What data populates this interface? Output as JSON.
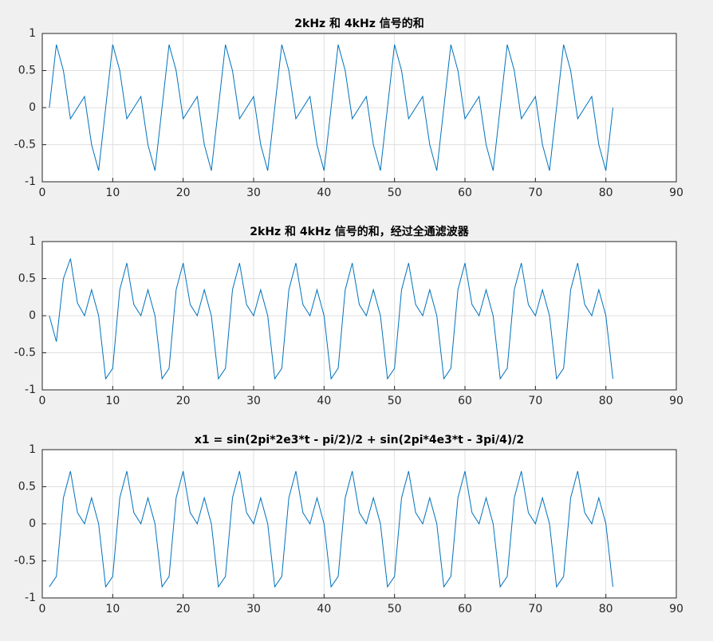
{
  "chart_data": [
    {
      "type": "line",
      "title": "2kHz 和 4kHz 信号的和",
      "color": "#0072bd",
      "grid": true,
      "xlim": [
        0,
        90
      ],
      "xticks": [
        0,
        10,
        20,
        30,
        40,
        50,
        60,
        70,
        80,
        90
      ],
      "ylim": [
        -1,
        1
      ],
      "yticks": [
        -1,
        -0.5,
        0,
        0.5,
        1
      ],
      "x": [
        1,
        2,
        3,
        4,
        5,
        6,
        7,
        8,
        9,
        10,
        11,
        12,
        13,
        14,
        15,
        16,
        17,
        18,
        19,
        20,
        21,
        22,
        23,
        24,
        25,
        26,
        27,
        28,
        29,
        30,
        31,
        32,
        33,
        34,
        35,
        36,
        37,
        38,
        39,
        40,
        41,
        42,
        43,
        44,
        45,
        46,
        47,
        48,
        49,
        50,
        51,
        52,
        53,
        54,
        55,
        56,
        57,
        58,
        59,
        60,
        61,
        62,
        63,
        64,
        65,
        66,
        67,
        68,
        69,
        70,
        71,
        72,
        73,
        74,
        75,
        76,
        77,
        78,
        79,
        80,
        81
      ],
      "values": [
        0,
        0.85,
        0.5,
        -0.15,
        0,
        0.15,
        -0.5,
        -0.85,
        0,
        0.85,
        0.5,
        -0.15,
        0,
        0.15,
        -0.5,
        -0.85,
        0,
        0.85,
        0.5,
        -0.15,
        0,
        0.15,
        -0.5,
        -0.85,
        0,
        0.85,
        0.5,
        -0.15,
        0,
        0.15,
        -0.5,
        -0.85,
        0,
        0.85,
        0.5,
        -0.15,
        0,
        0.15,
        -0.5,
        -0.85,
        0,
        0.85,
        0.5,
        -0.15,
        0,
        0.15,
        -0.5,
        -0.85,
        0,
        0.85,
        0.5,
        -0.15,
        0,
        0.15,
        -0.5,
        -0.85,
        0,
        0.85,
        0.5,
        -0.15,
        0,
        0.15,
        -0.5,
        -0.85,
        0,
        0.85,
        0.5,
        -0.15,
        0,
        0.15,
        -0.5,
        -0.85,
        0,
        0.85,
        0.5,
        -0.15,
        0,
        0.15,
        -0.5,
        -0.85,
        0
      ]
    },
    {
      "type": "line",
      "title": "2kHz 和 4kHz 信号的和，经过全通滤波器",
      "color": "#0072bd",
      "grid": true,
      "xlim": [
        0,
        90
      ],
      "xticks": [
        0,
        10,
        20,
        30,
        40,
        50,
        60,
        70,
        80,
        90
      ],
      "ylim": [
        -1,
        1
      ],
      "yticks": [
        -1,
        -0.5,
        0,
        0.5,
        1
      ],
      "x": [
        1,
        2,
        3,
        4,
        5,
        6,
        7,
        8,
        9,
        10,
        11,
        12,
        13,
        14,
        15,
        16,
        17,
        18,
        19,
        20,
        21,
        22,
        23,
        24,
        25,
        26,
        27,
        28,
        29,
        30,
        31,
        32,
        33,
        34,
        35,
        36,
        37,
        38,
        39,
        40,
        41,
        42,
        43,
        44,
        45,
        46,
        47,
        48,
        49,
        50,
        51,
        52,
        53,
        54,
        55,
        56,
        57,
        58,
        59,
        60,
        61,
        62,
        63,
        64,
        65,
        66,
        67,
        68,
        69,
        70,
        71,
        72,
        73,
        74,
        75,
        76,
        77,
        78,
        79,
        80,
        81
      ],
      "values": [
        0,
        -0.35,
        0.5,
        0.77,
        0.17,
        0,
        0.35,
        0,
        -0.85,
        -0.71,
        0.35,
        0.71,
        0.15,
        0,
        0.35,
        0,
        -0.85,
        -0.71,
        0.35,
        0.71,
        0.15,
        0,
        0.35,
        0,
        -0.85,
        -0.71,
        0.35,
        0.71,
        0.15,
        0,
        0.35,
        0,
        -0.85,
        -0.71,
        0.35,
        0.71,
        0.15,
        0,
        0.35,
        0,
        -0.85,
        -0.71,
        0.35,
        0.71,
        0.15,
        0,
        0.35,
        0,
        -0.85,
        -0.71,
        0.35,
        0.71,
        0.15,
        0,
        0.35,
        0,
        -0.85,
        -0.71,
        0.35,
        0.71,
        0.15,
        0,
        0.35,
        0,
        -0.85,
        -0.71,
        0.35,
        0.71,
        0.15,
        0,
        0.35,
        0,
        -0.85,
        -0.71,
        0.35,
        0.71,
        0.15,
        0,
        0.35,
        0,
        -0.85
      ]
    },
    {
      "type": "line",
      "title": "x1 = sin(2pi*2e3*t - pi/2)/2 + sin(2pi*4e3*t - 3pi/4)/2",
      "color": "#0072bd",
      "grid": true,
      "xlim": [
        0,
        90
      ],
      "xticks": [
        0,
        10,
        20,
        30,
        40,
        50,
        60,
        70,
        80,
        90
      ],
      "ylim": [
        -1,
        1
      ],
      "yticks": [
        -1,
        -0.5,
        0,
        0.5,
        1
      ],
      "x": [
        1,
        2,
        3,
        4,
        5,
        6,
        7,
        8,
        9,
        10,
        11,
        12,
        13,
        14,
        15,
        16,
        17,
        18,
        19,
        20,
        21,
        22,
        23,
        24,
        25,
        26,
        27,
        28,
        29,
        30,
        31,
        32,
        33,
        34,
        35,
        36,
        37,
        38,
        39,
        40,
        41,
        42,
        43,
        44,
        45,
        46,
        47,
        48,
        49,
        50,
        51,
        52,
        53,
        54,
        55,
        56,
        57,
        58,
        59,
        60,
        61,
        62,
        63,
        64,
        65,
        66,
        67,
        68,
        69,
        70,
        71,
        72,
        73,
        74,
        75,
        76,
        77,
        78,
        79,
        80,
        81
      ],
      "values": [
        -0.85,
        -0.71,
        0.35,
        0.71,
        0.15,
        0,
        0.35,
        0,
        -0.85,
        -0.71,
        0.35,
        0.71,
        0.15,
        0,
        0.35,
        0,
        -0.85,
        -0.71,
        0.35,
        0.71,
        0.15,
        0,
        0.35,
        0,
        -0.85,
        -0.71,
        0.35,
        0.71,
        0.15,
        0,
        0.35,
        0,
        -0.85,
        -0.71,
        0.35,
        0.71,
        0.15,
        0,
        0.35,
        0,
        -0.85,
        -0.71,
        0.35,
        0.71,
        0.15,
        0,
        0.35,
        0,
        -0.85,
        -0.71,
        0.35,
        0.71,
        0.15,
        0,
        0.35,
        0,
        -0.85,
        -0.71,
        0.35,
        0.71,
        0.15,
        0,
        0.35,
        0,
        -0.85,
        -0.71,
        0.35,
        0.71,
        0.15,
        0,
        0.35,
        0,
        -0.85,
        -0.71,
        0.35,
        0.71,
        0.15,
        0,
        0.35,
        0,
        -0.85
      ]
    }
  ]
}
